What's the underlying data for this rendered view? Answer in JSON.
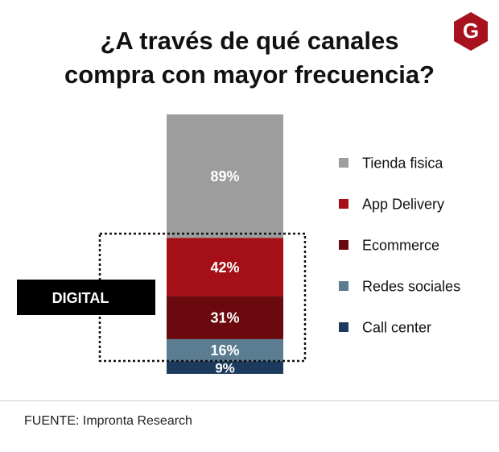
{
  "title_lines": [
    "¿A través de qué canales",
    "compra con mayor frecuencia?"
  ],
  "brand": {
    "logo_letter": "G",
    "color": "#a8121e"
  },
  "group_label": "DIGITAL",
  "source": "FUENTE: Impronta Research",
  "chart_data": {
    "type": "bar",
    "stacked": true,
    "title": "¿A través de qué canales compra con mayor frecuencia?",
    "xlabel": "",
    "ylabel": "",
    "ylim": [
      0,
      187
    ],
    "legend_position": "right",
    "series": [
      {
        "name": "Tienda fisica",
        "values": [
          89
        ],
        "label": "89%",
        "color": "#9d9d9d"
      },
      {
        "name": "App Delivery",
        "values": [
          42
        ],
        "label": "42%",
        "color": "#a50f17"
      },
      {
        "name": "Ecommerce",
        "values": [
          31
        ],
        "label": "31%",
        "color": "#6b0a0e"
      },
      {
        "name": "Redes sociales",
        "values": [
          16
        ],
        "label": "16%",
        "color": "#5b7c91"
      },
      {
        "name": "Call center",
        "values": [
          9
        ],
        "label": "9%",
        "color": "#1b3a5e"
      }
    ],
    "annotation": {
      "text": "DIGITAL",
      "covers": [
        "App Delivery",
        "Ecommerce",
        "Redes sociales",
        "Call center"
      ]
    }
  }
}
